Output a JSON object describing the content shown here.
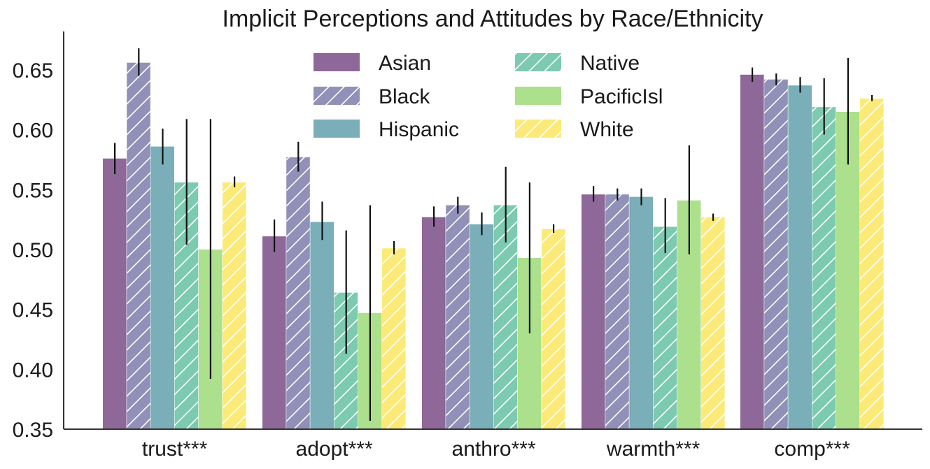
{
  "chart_data": {
    "type": "bar",
    "title": "Implicit Perceptions and Attitudes by Race/Ethnicity",
    "xlabel": "",
    "ylabel": "",
    "ylim": [
      0.35,
      0.68
    ],
    "yticks": [
      0.35,
      0.4,
      0.45,
      0.5,
      0.55,
      0.6,
      0.65
    ],
    "ytick_labels": [
      "0.35",
      "0.40",
      "0.45",
      "0.50",
      "0.55",
      "0.60",
      "0.65"
    ],
    "categories": [
      "trust***",
      "adopt***",
      "anthro***",
      "warmth***",
      "comp***"
    ],
    "grid": false,
    "legend_position": "top-center",
    "series": [
      {
        "name": "Asian",
        "color": "#8d6898",
        "hatch": false,
        "values": [
          0.576,
          0.511,
          0.527,
          0.546,
          0.646
        ],
        "err_low": [
          0.563,
          0.498,
          0.519,
          0.54,
          0.64
        ],
        "err_high": [
          0.589,
          0.525,
          0.536,
          0.553,
          0.652
        ]
      },
      {
        "name": "Black",
        "color": "#9090b8",
        "hatch": true,
        "values": [
          0.656,
          0.577,
          0.537,
          0.546,
          0.642
        ],
        "err_low": [
          0.645,
          0.565,
          0.53,
          0.541,
          0.637
        ],
        "err_high": [
          0.668,
          0.59,
          0.544,
          0.551,
          0.647
        ]
      },
      {
        "name": "Hispanic",
        "color": "#7aaeb8",
        "hatch": false,
        "values": [
          0.586,
          0.523,
          0.521,
          0.544,
          0.637
        ],
        "err_low": [
          0.571,
          0.508,
          0.512,
          0.537,
          0.631
        ],
        "err_high": [
          0.601,
          0.54,
          0.531,
          0.551,
          0.644
        ]
      },
      {
        "name": "Native",
        "color": "#7ccab0",
        "hatch": true,
        "values": [
          0.556,
          0.464,
          0.537,
          0.519,
          0.619
        ],
        "err_low": [
          0.504,
          0.413,
          0.506,
          0.497,
          0.596
        ],
        "err_high": [
          0.609,
          0.516,
          0.569,
          0.543,
          0.643
        ]
      },
      {
        "name": "PacificIsl",
        "color": "#ace08c",
        "hatch": false,
        "values": [
          0.5,
          0.447,
          0.493,
          0.541,
          0.615
        ],
        "err_low": [
          0.392,
          0.357,
          0.43,
          0.496,
          0.571
        ],
        "err_high": [
          0.609,
          0.537,
          0.556,
          0.587,
          0.66
        ]
      },
      {
        "name": "White",
        "color": "#fbea78",
        "hatch": true,
        "values": [
          0.556,
          0.501,
          0.517,
          0.527,
          0.626
        ],
        "err_low": [
          0.552,
          0.496,
          0.514,
          0.524,
          0.624
        ],
        "err_high": [
          0.561,
          0.507,
          0.521,
          0.53,
          0.629
        ]
      }
    ]
  }
}
